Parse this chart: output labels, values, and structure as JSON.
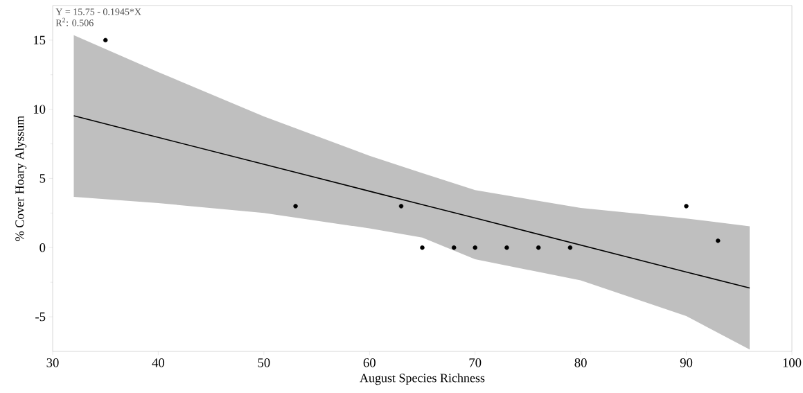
{
  "chart_data": {
    "type": "scatter",
    "xlabel": "August Species Richness",
    "ylabel": "% Cover Hoary Alyssum",
    "annotations": [
      "Y = 15.75 - 0.1945*X",
      "R$^{2}$: 0.506"
    ],
    "xlim": [
      30,
      100
    ],
    "ylim": [
      -7.5,
      17.5
    ],
    "xticks": [
      30,
      40,
      50,
      60,
      70,
      80,
      90,
      100
    ],
    "yticks": [
      -5,
      0,
      5,
      10,
      15
    ],
    "grid": false,
    "series": [
      {
        "type": "line",
        "marker": "none",
        "color": "#000000",
        "x": [
          32,
          40,
          50,
          60,
          65,
          70,
          80,
          90,
          96
        ],
        "values": [
          9.53,
          7.97,
          6.03,
          4.08,
          3.11,
          2.14,
          0.19,
          -1.76,
          -2.92
        ],
        "lower": [
          3.67,
          3.22,
          2.51,
          1.39,
          0.73,
          -0.84,
          -2.36,
          -4.95,
          -7.36
        ],
        "upper": [
          15.36,
          12.69,
          9.48,
          6.64,
          5.39,
          4.16,
          2.87,
          2.11,
          1.54
        ]
      },
      {
        "type": "scatter",
        "marker": "circle",
        "color": "#000000",
        "x": [
          35,
          53,
          63,
          65,
          68,
          70,
          73,
          76,
          79,
          90,
          93
        ],
        "values": [
          15,
          3,
          3,
          0,
          0,
          0,
          0,
          0,
          0,
          3,
          0.5
        ]
      }
    ]
  }
}
